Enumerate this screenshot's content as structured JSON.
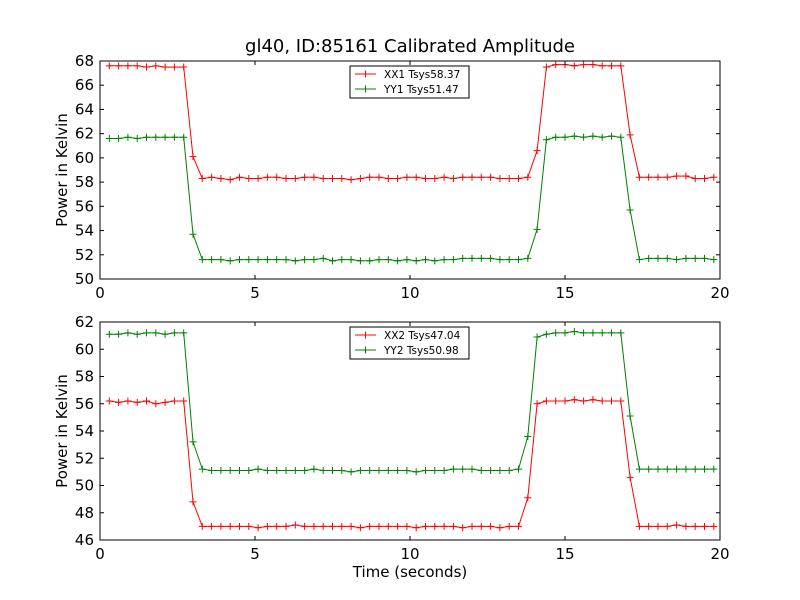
{
  "title": "gl40, ID:85161 Calibrated Amplitude",
  "colors": {
    "xx": "#ff0000",
    "yy": "#008000"
  },
  "chart_data": [
    {
      "type": "line",
      "xlabel": "",
      "ylabel": "Power in Kelvin",
      "xlim": [
        0,
        20
      ],
      "ylim": [
        50,
        68
      ],
      "xticks": [
        0,
        5,
        10,
        15,
        20
      ],
      "yticks": [
        50,
        52,
        54,
        56,
        58,
        60,
        62,
        64,
        66,
        68
      ],
      "legend_loc": "top-center",
      "x": [
        0.3,
        0.6,
        0.9,
        1.2,
        1.5,
        1.8,
        2.1,
        2.4,
        2.7,
        3.0,
        3.3,
        3.6,
        3.9,
        4.2,
        4.5,
        4.8,
        5.1,
        5.4,
        5.7,
        6.0,
        6.3,
        6.6,
        6.9,
        7.2,
        7.5,
        7.8,
        8.1,
        8.4,
        8.7,
        9.0,
        9.3,
        9.6,
        9.9,
        10.2,
        10.5,
        10.8,
        11.1,
        11.4,
        11.7,
        12.0,
        12.3,
        12.6,
        12.9,
        13.2,
        13.5,
        13.8,
        14.1,
        14.4,
        14.7,
        15.0,
        15.3,
        15.6,
        15.9,
        16.2,
        16.5,
        16.8,
        17.1,
        17.4,
        17.7,
        18.0,
        18.3,
        18.6,
        18.9,
        19.2,
        19.5,
        19.8
      ],
      "series": [
        {
          "name": "XX1 Tsys58.37",
          "color": "#ff0000",
          "values": [
            67.6,
            67.6,
            67.6,
            67.6,
            67.5,
            67.6,
            67.5,
            67.5,
            67.5,
            60.1,
            58.3,
            58.4,
            58.3,
            58.2,
            58.4,
            58.3,
            58.3,
            58.4,
            58.4,
            58.3,
            58.3,
            58.4,
            58.4,
            58.3,
            58.3,
            58.3,
            58.2,
            58.3,
            58.4,
            58.4,
            58.3,
            58.3,
            58.4,
            58.4,
            58.3,
            58.3,
            58.4,
            58.3,
            58.4,
            58.4,
            58.4,
            58.4,
            58.3,
            58.3,
            58.3,
            58.4,
            60.6,
            67.5,
            67.7,
            67.7,
            67.6,
            67.7,
            67.7,
            67.6,
            67.6,
            67.6,
            61.9,
            58.4,
            58.4,
            58.4,
            58.4,
            58.5,
            58.5,
            58.3,
            58.3,
            58.4
          ]
        },
        {
          "name": "YY1 Tsys51.47",
          "color": "#008000",
          "values": [
            61.6,
            61.6,
            61.7,
            61.6,
            61.7,
            61.7,
            61.7,
            61.7,
            61.7,
            53.7,
            51.6,
            51.6,
            51.6,
            51.5,
            51.6,
            51.6,
            51.6,
            51.6,
            51.6,
            51.6,
            51.5,
            51.6,
            51.6,
            51.7,
            51.5,
            51.6,
            51.6,
            51.5,
            51.5,
            51.6,
            51.6,
            51.5,
            51.6,
            51.5,
            51.6,
            51.5,
            51.6,
            51.6,
            51.7,
            51.7,
            51.7,
            51.7,
            51.6,
            51.6,
            51.6,
            51.7,
            54.1,
            61.5,
            61.7,
            61.7,
            61.8,
            61.7,
            61.8,
            61.7,
            61.8,
            61.7,
            55.7,
            51.6,
            51.7,
            51.7,
            51.7,
            51.6,
            51.7,
            51.7,
            51.7,
            51.6
          ]
        }
      ]
    },
    {
      "type": "line",
      "xlabel": "Time (seconds)",
      "ylabel": "Power in Kelvin",
      "xlim": [
        0,
        20
      ],
      "ylim": [
        46,
        62
      ],
      "xticks": [
        0,
        5,
        10,
        15,
        20
      ],
      "yticks": [
        46,
        48,
        50,
        52,
        54,
        56,
        58,
        60,
        62
      ],
      "legend_loc": "top-center",
      "x": [
        0.3,
        0.6,
        0.9,
        1.2,
        1.5,
        1.8,
        2.1,
        2.4,
        2.7,
        3.0,
        3.3,
        3.6,
        3.9,
        4.2,
        4.5,
        4.8,
        5.1,
        5.4,
        5.7,
        6.0,
        6.3,
        6.6,
        6.9,
        7.2,
        7.5,
        7.8,
        8.1,
        8.4,
        8.7,
        9.0,
        9.3,
        9.6,
        9.9,
        10.2,
        10.5,
        10.8,
        11.1,
        11.4,
        11.7,
        12.0,
        12.3,
        12.6,
        12.9,
        13.2,
        13.5,
        13.8,
        14.1,
        14.4,
        14.7,
        15.0,
        15.3,
        15.6,
        15.9,
        16.2,
        16.5,
        16.8,
        17.1,
        17.4,
        17.7,
        18.0,
        18.3,
        18.6,
        18.9,
        19.2,
        19.5,
        19.8
      ],
      "series": [
        {
          "name": "XX2 Tsys47.04",
          "color": "#ff0000",
          "values": [
            56.2,
            56.1,
            56.2,
            56.1,
            56.2,
            56.0,
            56.1,
            56.2,
            56.2,
            48.8,
            47.0,
            47.0,
            47.0,
            47.0,
            47.0,
            47.0,
            46.9,
            47.0,
            47.0,
            47.0,
            47.1,
            47.0,
            47.0,
            47.0,
            47.0,
            47.0,
            47.0,
            46.9,
            47.0,
            47.0,
            47.0,
            47.0,
            47.0,
            46.9,
            47.0,
            47.0,
            47.0,
            47.0,
            46.9,
            47.0,
            47.0,
            47.0,
            46.9,
            47.0,
            47.0,
            49.1,
            56.0,
            56.2,
            56.2,
            56.2,
            56.3,
            56.2,
            56.3,
            56.2,
            56.2,
            56.2,
            50.6,
            47.0,
            47.0,
            47.0,
            47.0,
            47.1,
            47.0,
            47.0,
            47.0,
            47.0
          ]
        },
        {
          "name": "YY2 Tsys50.98",
          "color": "#008000",
          "values": [
            61.1,
            61.1,
            61.2,
            61.1,
            61.2,
            61.2,
            61.1,
            61.2,
            61.2,
            53.2,
            51.2,
            51.1,
            51.1,
            51.1,
            51.1,
            51.1,
            51.2,
            51.1,
            51.1,
            51.1,
            51.1,
            51.1,
            51.2,
            51.1,
            51.1,
            51.1,
            51.0,
            51.1,
            51.1,
            51.1,
            51.1,
            51.1,
            51.1,
            51.0,
            51.1,
            51.1,
            51.1,
            51.2,
            51.2,
            51.2,
            51.1,
            51.1,
            51.1,
            51.1,
            51.2,
            53.6,
            60.9,
            61.1,
            61.2,
            61.2,
            61.3,
            61.2,
            61.2,
            61.2,
            61.2,
            61.2,
            55.1,
            51.2,
            51.2,
            51.2,
            51.2,
            51.2,
            51.2,
            51.2,
            51.2,
            51.2
          ]
        }
      ]
    }
  ]
}
